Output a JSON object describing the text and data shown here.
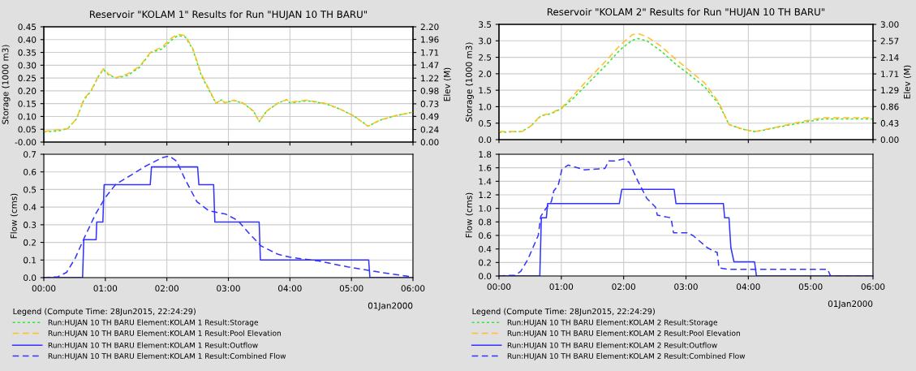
{
  "chart_data": [
    {
      "type": "line",
      "title": "Reservoir \"KOLAM 1\" Results for Run \"HUJAN 10 TH BARU\"",
      "ylabel": "Storage (1000 m3)",
      "y2label": "Elev (M)",
      "legend_title": "Legend (Compute Time: 28Jun2015, 22:24:29)",
      "legend": "bottom",
      "grid": true,
      "tick_labels": "y",
      "xlim": [
        0,
        6
      ],
      "xticks": [
        {
          "value": 0,
          "label": null
        },
        {
          "value": 1,
          "label": null
        },
        {
          "value": 2,
          "label": null
        },
        {
          "value": 3,
          "label": null
        },
        {
          "value": 4,
          "label": null
        },
        {
          "value": 5,
          "label": null
        },
        {
          "value": 6,
          "label": null
        }
      ],
      "ylim": [
        0,
        0.45
      ],
      "yticks": [
        {
          "value": 0,
          "label": "-0.00"
        },
        {
          "value": 0.05,
          "label": "0.05"
        },
        {
          "value": 0.1,
          "label": "0.10"
        },
        {
          "value": 0.15,
          "label": "0.15"
        },
        {
          "value": 0.2,
          "label": "0.20"
        },
        {
          "value": 0.25,
          "label": "0.25"
        },
        {
          "value": 0.3,
          "label": "0.30"
        },
        {
          "value": 0.35,
          "label": "0.35"
        },
        {
          "value": 0.4,
          "label": "0.40"
        },
        {
          "value": 0.45,
          "label": "0.45"
        }
      ],
      "y2lim": [
        0,
        2.2
      ],
      "y2ticks": [
        {
          "value": 0,
          "label": "0.00"
        },
        0.24,
        0.49,
        0.73,
        0.98,
        1.22,
        1.47,
        1.71,
        1.96,
        {
          "value": 2.2,
          "label": "2.20"
        }
      ],
      "series": [
        {
          "name": "Run:HUJAN 10 TH BARU Element:KOLAM 1 Result:Storage",
          "color": "#33e633",
          "line_style": "dotted",
          "x": [
            0,
            0.23,
            0.39,
            0.53,
            0.65,
            0.77,
            0.89,
            0.97,
            1.05,
            1.17,
            1.36,
            1.55,
            1.74,
            1.92,
            2.07,
            2.18,
            2.3,
            2.42,
            2.56,
            2.68,
            2.8,
            2.89,
            2.94,
            3.09,
            3.25,
            3.41,
            3.5,
            3.62,
            3.81,
            3.95,
            4.0,
            4.28,
            4.57,
            4.8,
            5.04,
            5.27,
            5.46,
            5.7,
            6.0
          ],
          "values": [
            0.04,
            0.043,
            0.053,
            0.09,
            0.164,
            0.2,
            0.257,
            0.283,
            0.263,
            0.25,
            0.26,
            0.29,
            0.35,
            0.363,
            0.397,
            0.416,
            0.41,
            0.363,
            0.26,
            0.205,
            0.151,
            0.165,
            0.153,
            0.163,
            0.15,
            0.12,
            0.08,
            0.12,
            0.153,
            0.165,
            0.153,
            0.161,
            0.15,
            0.13,
            0.102,
            0.062,
            0.085,
            0.102,
            0.117
          ]
        },
        {
          "name": "Run:HUJAN 10 TH BARU Element:KOLAM 1 Result:Pool Elevation",
          "color": "#ffc020",
          "line_style": "dashed",
          "axis": "y2",
          "x": [
            0,
            0.39,
            0.53,
            0.65,
            0.77,
            0.89,
            0.97,
            1.05,
            1.17,
            1.36,
            1.55,
            1.74,
            1.92,
            2.07,
            2.18,
            2.3,
            2.42,
            2.56,
            2.68,
            2.8,
            2.89,
            2.94,
            3.09,
            3.25,
            3.41,
            3.5,
            3.62,
            3.81,
            3.95,
            4.0,
            4.28,
            4.57,
            4.8,
            5.04,
            5.27,
            5.46,
            5.7,
            6.0
          ],
          "values": [
            0.2,
            0.26,
            0.44,
            0.82,
            0.99,
            1.27,
            1.4,
            1.3,
            1.23,
            1.3,
            1.44,
            1.72,
            1.81,
            1.98,
            2.06,
            2.03,
            1.79,
            1.3,
            1.02,
            0.74,
            0.81,
            0.75,
            0.8,
            0.74,
            0.59,
            0.39,
            0.59,
            0.75,
            0.81,
            0.76,
            0.8,
            0.74,
            0.64,
            0.5,
            0.3,
            0.42,
            0.5,
            0.57
          ]
        }
      ]
    },
    {
      "type": "line",
      "ylabel": "Flow (cms)",
      "legend": "bottom",
      "grid": true,
      "annotations": [
        "01Jan2000"
      ],
      "xlim": [
        0,
        6
      ],
      "xticks": [
        {
          "value": 0,
          "label": "00:00"
        },
        {
          "value": 1,
          "label": "01:00"
        },
        {
          "value": 2,
          "label": "02:00"
        },
        {
          "value": 3,
          "label": "03:00"
        },
        {
          "value": 4,
          "label": "04:00"
        },
        {
          "value": 5,
          "label": "05:00"
        },
        {
          "value": 6,
          "label": "06:00"
        }
      ],
      "ylim": [
        0,
        0.7
      ],
      "yticks": [
        {
          "value": 0,
          "label": "0.0"
        },
        0.1,
        0.2,
        0.3,
        0.4,
        0.5,
        0.6,
        0.7
      ],
      "series": [
        {
          "name": "Run:HUJAN 10 TH BARU Element:KOLAM 1 Result:Outflow",
          "color": "#3333ff",
          "line_style": "solid",
          "x": [
            0,
            0.63,
            0.65,
            0.85,
            0.86,
            0.96,
            0.98,
            1.73,
            1.75,
            2.5,
            2.52,
            2.76,
            2.78,
            3.5,
            3.52,
            5.28,
            5.3,
            6
          ],
          "values": [
            0,
            0,
            0.215,
            0.215,
            0.315,
            0.315,
            0.527,
            0.527,
            0.628,
            0.628,
            0.527,
            0.527,
            0.315,
            0.315,
            0.1,
            0.1,
            0,
            0
          ]
        },
        {
          "name": "Run:HUJAN 10 TH BARU Element:KOLAM 1 Result:Combined Flow",
          "color": "#3333ff",
          "line_style": "dashed",
          "x": [
            0,
            0.23,
            0.37,
            0.51,
            0.65,
            0.84,
            1.0,
            1.17,
            1.41,
            1.64,
            1.92,
            2.04,
            2.16,
            2.3,
            2.49,
            2.68,
            2.96,
            3.15,
            3.34,
            3.53,
            3.81,
            4.0,
            4.47,
            4.94,
            5.42,
            6.0
          ],
          "values": [
            0,
            0.005,
            0.03,
            0.11,
            0.22,
            0.36,
            0.455,
            0.53,
            0.58,
            0.63,
            0.68,
            0.69,
            0.66,
            0.555,
            0.43,
            0.38,
            0.36,
            0.325,
            0.25,
            0.18,
            0.132,
            0.116,
            0.094,
            0.061,
            0.033,
            0.003
          ]
        }
      ]
    },
    {
      "type": "line",
      "title": "Reservoir \"KOLAM 2\" Results for Run \"HUJAN 10 TH BARU\"",
      "ylabel": "Storage (1000 m3)",
      "y2label": "Elev (M)",
      "legend_title": "Legend (Compute Time: 28Jun2015, 22:24:29)",
      "legend": "bottom",
      "grid": true,
      "tick_labels": "y",
      "xlim": [
        0,
        6
      ],
      "xticks": [
        {
          "value": 0,
          "label": null
        },
        {
          "value": 1,
          "label": null
        },
        {
          "value": 2,
          "label": null
        },
        {
          "value": 3,
          "label": null
        },
        {
          "value": 4,
          "label": null
        },
        {
          "value": 5,
          "label": null
        },
        {
          "value": 6,
          "label": null
        }
      ],
      "ylim": [
        0,
        3.5
      ],
      "yticks": [
        {
          "value": 0,
          "label": "0.0"
        },
        0.5,
        {
          "value": 1,
          "label": "1.0"
        },
        1.5,
        {
          "value": 2,
          "label": "2.0"
        },
        2.5,
        {
          "value": 3,
          "label": "3.0"
        },
        3.5
      ],
      "y2lim": [
        0,
        3
      ],
      "y2ticks": [
        {
          "value": 0,
          "label": "0.00"
        },
        0.43,
        0.86,
        1.29,
        1.71,
        2.14,
        2.57,
        {
          "value": 3,
          "label": "3.00"
        }
      ],
      "series": [
        {
          "name": "Run:HUJAN 10 TH BARU Element:KOLAM 2 Result:Storage",
          "color": "#33e633",
          "line_style": "dotted",
          "x": [
            0,
            0.37,
            0.51,
            0.67,
            0.84,
            1.0,
            1.21,
            1.44,
            1.67,
            1.95,
            2.14,
            2.23,
            2.37,
            2.6,
            2.83,
            3.07,
            3.3,
            3.53,
            3.69,
            3.9,
            4.11,
            4.46,
            4.92,
            5.2,
            6.0
          ],
          "values": [
            0.22,
            0.25,
            0.41,
            0.72,
            0.79,
            0.94,
            1.29,
            1.73,
            2.17,
            2.74,
            3.02,
            3.07,
            3.0,
            2.69,
            2.3,
            1.95,
            1.6,
            1.07,
            0.46,
            0.32,
            0.24,
            0.37,
            0.54,
            0.63,
            0.63
          ]
        },
        {
          "name": "Run:HUJAN 10 TH BARU Element:KOLAM 2 Result:Pool Elevation",
          "color": "#ffc020",
          "line_style": "dashed",
          "axis": "y2",
          "x": [
            0,
            0.37,
            0.51,
            0.67,
            0.84,
            1.0,
            1.21,
            1.44,
            1.67,
            1.95,
            2.14,
            2.23,
            2.37,
            2.6,
            2.83,
            3.07,
            3.3,
            3.53,
            3.69,
            3.9,
            4.11,
            4.46,
            4.92,
            5.2,
            6.0
          ],
          "values": [
            0.21,
            0.21,
            0.35,
            0.63,
            0.69,
            0.82,
            1.18,
            1.59,
            1.97,
            2.47,
            2.73,
            2.76,
            2.68,
            2.43,
            2.1,
            1.78,
            1.47,
            0.96,
            0.39,
            0.28,
            0.21,
            0.33,
            0.49,
            0.57,
            0.57
          ]
        }
      ]
    },
    {
      "type": "line",
      "ylabel": "Flow (cms)",
      "legend": "bottom",
      "grid": true,
      "annotations": [
        "01Jan2000"
      ],
      "xlim": [
        0,
        6
      ],
      "xticks": [
        {
          "value": 0,
          "label": "00:00"
        },
        {
          "value": 1,
          "label": "01:00"
        },
        {
          "value": 2,
          "label": "02:00"
        },
        {
          "value": 3,
          "label": "03:00"
        },
        {
          "value": 4,
          "label": "04:00"
        },
        {
          "value": 5,
          "label": "05:00"
        },
        {
          "value": 6,
          "label": "06:00"
        }
      ],
      "ylim": [
        0,
        1.8
      ],
      "yticks": [
        {
          "value": 0,
          "label": "0.0"
        },
        0.2,
        0.4,
        0.6,
        0.8,
        {
          "value": 1,
          "label": "1.0"
        },
        1.2,
        1.4,
        1.6,
        1.8
      ],
      "series": [
        {
          "name": "Run:HUJAN 10 TH BARU Element:KOLAM 2 Result:Outflow",
          "color": "#3333ff",
          "line_style": "solid",
          "x": [
            0,
            0.655,
            0.68,
            0.76,
            0.78,
            1.93,
            1.97,
            2.81,
            2.84,
            3.6,
            3.62,
            3.69,
            3.72,
            3.77,
            4.1,
            4.13,
            6
          ],
          "values": [
            0,
            0,
            0.86,
            0.86,
            1.07,
            1.07,
            1.28,
            1.28,
            1.07,
            1.07,
            0.86,
            0.86,
            0.42,
            0.21,
            0.21,
            0,
            0
          ]
        },
        {
          "name": "Run:HUJAN 10 TH BARU Element:KOLAM 2 Result:Combined Flow",
          "color": "#3333ff",
          "line_style": "dashed",
          "x": [
            0,
            0.16,
            0.26,
            0.35,
            0.46,
            0.63,
            0.67,
            0.74,
            0.84,
            0.88,
            0.95,
            1.01,
            1.11,
            1.37,
            1.7,
            1.76,
            1.86,
            2.0,
            2.09,
            2.23,
            2.37,
            2.51,
            2.54,
            2.76,
            2.8,
            3.02,
            3.11,
            3.34,
            3.46,
            3.5,
            3.53,
            3.67,
            3.99,
            5.27,
            5.32,
            6
          ],
          "values": [
            0,
            0.01,
            0.01,
            0.07,
            0.24,
            0.6,
            0.88,
            0.98,
            1.1,
            1.26,
            1.34,
            1.58,
            1.64,
            1.57,
            1.59,
            1.7,
            1.7,
            1.73,
            1.68,
            1.4,
            1.15,
            1.02,
            0.9,
            0.86,
            0.64,
            0.64,
            0.6,
            0.42,
            0.36,
            0.35,
            0.12,
            0.1,
            0.1,
            0.1,
            0,
            0
          ]
        }
      ]
    }
  ]
}
